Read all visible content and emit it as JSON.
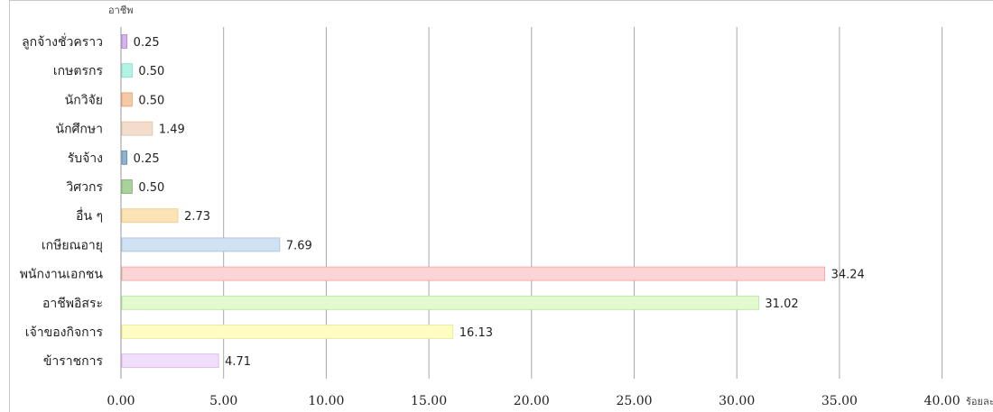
{
  "chart_data": {
    "type": "bar",
    "orientation": "horizontal",
    "category_axis_label": "อาชีพ",
    "value_axis_label": "ร้อยละ",
    "xlim": [
      0,
      40
    ],
    "x_ticks": [
      "0.00",
      "5.00",
      "10.00",
      "15.00",
      "20.00",
      "25.00",
      "30.00",
      "35.00",
      "40.00"
    ],
    "grid": "vertical",
    "categories": [
      "ลูกจ้างชั่วคราว",
      "เกษตรกร",
      "นักวิจัย",
      "นักศึกษา",
      "รับจ้าง",
      "วิศวกร",
      "อื่น ๆ",
      "เกษียณอายุ",
      "พนักงานเอกชน",
      "อาชีพอิสระ",
      "เจ้าของกิจการ",
      "ข้าราชการ"
    ],
    "values": [
      0.25,
      0.5,
      0.5,
      1.49,
      0.25,
      0.5,
      2.73,
      7.69,
      34.24,
      31.02,
      16.13,
      4.71
    ],
    "value_labels": [
      "0.25",
      "0.50",
      "0.50",
      "1.49",
      "0.25",
      "0.50",
      "2.73",
      "7.69",
      "34.24",
      "31.02",
      "16.13",
      "4.71"
    ],
    "bar_fill": [
      "#d9b3ee",
      "#b3f3e3",
      "#f6c9a6",
      "#f3dccb",
      "#8fb3cf",
      "#a9d19c",
      "#fbe3b6",
      "#cfe1f3",
      "#fbd5d5",
      "#e3f9d0",
      "#fdfcc3",
      "#f1defb"
    ],
    "bar_stroke": [
      "#b07fd0",
      "#7fdcc4",
      "#e59c66",
      "#e6bea3",
      "#5a87ad",
      "#77ac66",
      "#f2c97e",
      "#a3c0df",
      "#f0a0a0",
      "#b6e59c",
      "#e9e78f",
      "#d6b2ee"
    ]
  }
}
